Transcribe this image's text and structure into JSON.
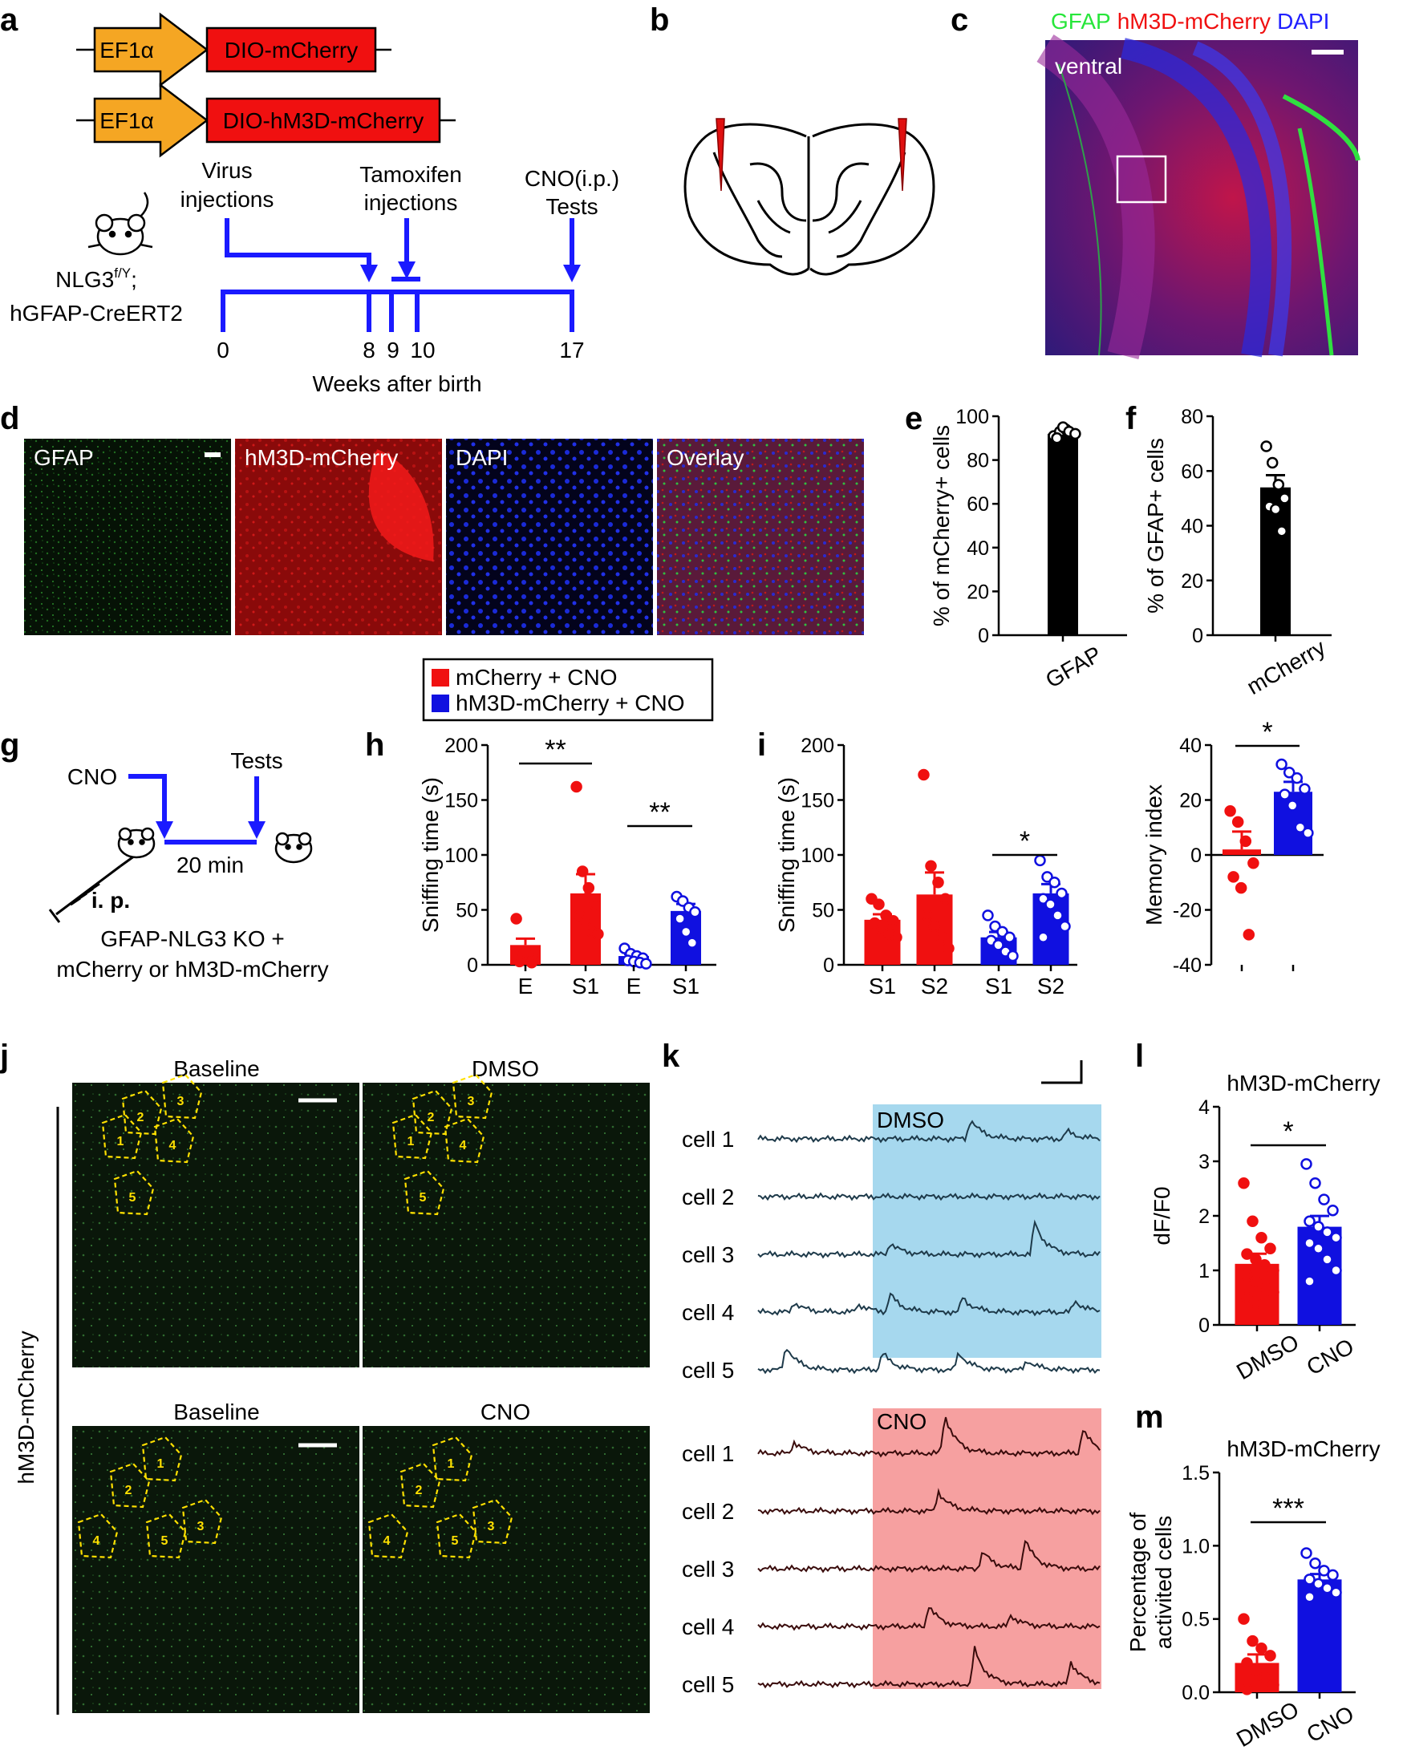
{
  "colors": {
    "red": "#f01010",
    "blue": "#1010e0",
    "timeline": "#1a1aff",
    "orange": "#f5a623",
    "green": "#27e63a",
    "yellow": "#ffe000",
    "dmso_bg": "#a6d8ee",
    "cno_bg": "#f6a0a0"
  },
  "panel_letters": {
    "a": "a",
    "b": "b",
    "c": "c",
    "d": "d",
    "e": "e",
    "f": "f",
    "g": "g",
    "h": "h",
    "i": "i",
    "j": "j",
    "k": "k",
    "l": "l",
    "m": "m"
  },
  "panel_a": {
    "promoter": "EF1α",
    "construct1": "DIO-mCherry",
    "construct2": "DIO-hM3D-mCherry",
    "mouse_line1": "NLG3",
    "mouse_line1_sup": "f/Y",
    "mouse_line1_end": ";",
    "mouse_line2": "hGFAP-CreERT2",
    "event1_l1": "Virus",
    "event1_l2": "injections",
    "event2_l1": "Tamoxifen",
    "event2_l2": "injections",
    "event3_l1": "CNO(i.p.)",
    "event3_l2": "Tests",
    "weeks": [
      "0",
      "8",
      "9",
      "10",
      "17"
    ],
    "axis_label": "Weeks after birth"
  },
  "panel_c": {
    "label_gfap": "GFAP",
    "label_hm3d": "hM3D-mCherry",
    "label_dapi": "DAPI",
    "region": "ventral"
  },
  "panel_d": {
    "tiles": [
      "GFAP",
      "hM3D-mCherry",
      "DAPI",
      "Overlay"
    ]
  },
  "panel_g": {
    "drug": "CNO",
    "tests": "Tests",
    "interval": "20 min",
    "route": "i. p.",
    "groups_l1": "GFAP-NLG3 KO +",
    "groups_l2": "mCherry or hM3D-mCherry"
  },
  "legend": {
    "mcherry": "mCherry + CNO",
    "hm3d": "hM3D-mCherry + CNO"
  },
  "panel_j": {
    "side_label": "hM3D-mCherry",
    "tiles": [
      "Baseline",
      "DMSO",
      "Baseline",
      "CNO"
    ],
    "cell_numbers": [
      "1",
      "2",
      "3",
      "4",
      "5"
    ]
  },
  "panel_k": {
    "dmso_label": "DMSO",
    "cno_label": "CNO",
    "cells": [
      "cell 1",
      "cell 2",
      "cell 3",
      "cell 4",
      "cell 5"
    ]
  },
  "chart_data": [
    {
      "id": "e",
      "type": "bar",
      "categories": [
        "GFAP"
      ],
      "values": [
        92
      ],
      "ylabel": "% of mCherry+ cells",
      "ylim": [
        0,
        100
      ],
      "yticks": [
        "0",
        "20",
        "40",
        "60",
        "80",
        "100"
      ],
      "points": [
        [
          91,
          93,
          94,
          92,
          90,
          95,
          93,
          92
        ]
      ],
      "colors": [
        "#000000"
      ]
    },
    {
      "id": "f",
      "type": "bar",
      "categories": [
        "mCherry"
      ],
      "values": [
        54
      ],
      "ylabel": "% of GFAP+ cells",
      "ylim": [
        0,
        80
      ],
      "yticks": [
        "0",
        "20",
        "40",
        "60",
        "80"
      ],
      "points": [
        [
          69,
          63,
          55,
          50,
          47,
          46,
          38
        ]
      ],
      "colors": [
        "#000000"
      ]
    },
    {
      "id": "h",
      "type": "bar",
      "categories": [
        "E",
        "S1",
        "E",
        "S1"
      ],
      "values": [
        18,
        65,
        8,
        49
      ],
      "ylabel": "Sniffing time (s)",
      "ylim": [
        0,
        200
      ],
      "yticks": [
        "0",
        "50",
        "100",
        "150",
        "200"
      ],
      "points": [
        [
          42,
          12,
          8,
          5,
          3,
          10,
          2
        ],
        [
          162,
          85,
          70,
          55,
          45,
          40,
          30,
          28
        ],
        [
          15,
          10,
          8,
          6,
          4,
          3,
          2,
          1
        ],
        [
          62,
          58,
          52,
          48,
          42,
          30,
          20
        ]
      ],
      "colors": [
        "#f01010",
        "#f01010",
        "#1010e0",
        "#1010e0"
      ],
      "sig": [
        "**",
        "**"
      ]
    },
    {
      "id": "i",
      "type": "bar",
      "categories": [
        "S1",
        "S2",
        "S1",
        "S2"
      ],
      "values": [
        41,
        64,
        25,
        65
      ],
      "ylabel": "Sniffing time (s)",
      "ylim": [
        0,
        200
      ],
      "yticks": [
        "0",
        "50",
        "100",
        "150",
        "200"
      ],
      "points": [
        [
          60,
          55,
          45,
          40,
          38,
          32,
          28,
          25
        ],
        [
          173,
          90,
          75,
          60,
          45,
          35,
          25,
          15
        ],
        [
          45,
          35,
          30,
          25,
          22,
          18,
          12,
          8
        ],
        [
          95,
          80,
          75,
          65,
          60,
          55,
          45,
          35,
          25
        ]
      ],
      "colors": [
        "#f01010",
        "#f01010",
        "#1010e0",
        "#1010e0"
      ],
      "sig": [
        "*"
      ]
    },
    {
      "id": "i2",
      "type": "bar",
      "categories": [
        "",
        ""
      ],
      "values": [
        2,
        23
      ],
      "ylabel": "Memory index",
      "ylim": [
        -40,
        40
      ],
      "yticks": [
        "-40",
        "-20",
        "0",
        "20",
        "40"
      ],
      "points": [
        [
          16,
          12,
          5,
          -3,
          -8,
          -12,
          -29
        ],
        [
          33,
          30,
          28,
          24,
          22,
          18,
          10,
          8
        ]
      ],
      "colors": [
        "#f01010",
        "#1010e0"
      ],
      "sig": [
        "*"
      ]
    },
    {
      "id": "l",
      "type": "bar",
      "categories": [
        "DMSO",
        "CNO"
      ],
      "values": [
        1.12,
        1.8
      ],
      "title": "hM3D-mCherry",
      "ylabel": "dF/F0",
      "ylim": [
        0,
        4
      ],
      "yticks": [
        "0",
        "1",
        "2",
        "3",
        "4"
      ],
      "points": [
        [
          2.6,
          1.9,
          1.6,
          1.4,
          1.3,
          1.2,
          1.1,
          1.0,
          0.9,
          0.8,
          0.7,
          0.6,
          0.5,
          0.4
        ],
        [
          2.95,
          2.6,
          2.3,
          2.1,
          1.9,
          1.8,
          1.7,
          1.6,
          1.5,
          1.4,
          1.2,
          1.0,
          0.8
        ]
      ],
      "colors": [
        "#f01010",
        "#1010e0"
      ],
      "sig": [
        "*"
      ]
    },
    {
      "id": "m",
      "type": "bar",
      "categories": [
        "DMSO",
        "CNO"
      ],
      "values": [
        0.2,
        0.77
      ],
      "title": "hM3D-mCherry",
      "ylabel_l1": "Percentage of",
      "ylabel_l2": "activited cells",
      "ylim": [
        0,
        1.5
      ],
      "yticks": [
        "0.0",
        "0.5",
        "1.0",
        "1.5"
      ],
      "points": [
        [
          0.5,
          0.35,
          0.3,
          0.25,
          0.2,
          0.15,
          0.1,
          0.05,
          0.02
        ],
        [
          0.95,
          0.88,
          0.83,
          0.8,
          0.77,
          0.74,
          0.71,
          0.68,
          0.65
        ]
      ],
      "colors": [
        "#f01010",
        "#1010e0"
      ],
      "sig": [
        "***"
      ]
    }
  ]
}
